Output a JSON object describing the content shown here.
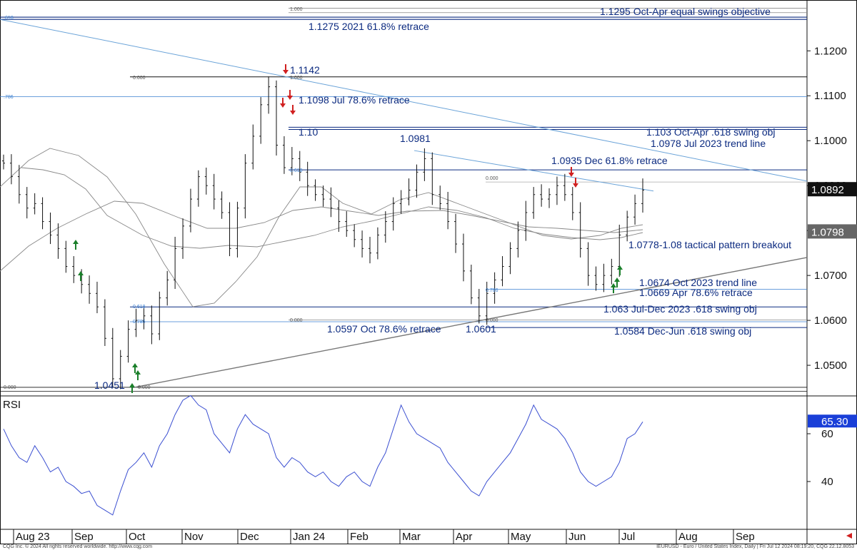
{
  "chart_data": {
    "type": "candlestick",
    "symbol_info": "IEURUSD - Euro / United States Index, Daily | Fri Jul 12 2024 08:19:20, CQG 22.12.8053",
    "copyright": "CQG Inc. © 2024 All rights reserved worldwide. http://www.cqg.com",
    "price_axis": {
      "ticks": [
        "1.0500",
        "1.0600",
        "1.0700",
        "1.0800",
        "1.0900",
        "1.1000",
        "1.1100",
        "1.1200"
      ],
      "range": [
        1.0435,
        1.131
      ]
    },
    "last_price": "1.0892",
    "secondary_price_label": "1.0798",
    "months": [
      "Aug 23",
      "Sep",
      "Oct",
      "Nov",
      "Dec",
      "Jan 24",
      "Feb",
      "Mar",
      "Apr",
      "May",
      "Jun",
      "Jul",
      "Aug",
      "Sep"
    ],
    "annotations": [
      "1.1295 Oct-Apr equal swings objective",
      "1.1275 2021 61.8% retrace",
      "1.1142",
      "1.1098 Jul 78.6% retrace",
      "1.10",
      "1.0981",
      "1.103 Oct-Apr .618 swing obj",
      "1.0978 Jul 2023 trend line",
      "1.0935 Dec 61.8% retrace",
      "1.0778-1.08 tactical pattern breakout",
      "1.0674 Oct 2023 trend line",
      "1.0669 Apr 78.6% retrace",
      "1.063 Jul-Dec 2023 .618 swing obj",
      "1.0597 Oct 78.6% retrace",
      "1.0601",
      "1.0584 Dec-Jun .618 swing obj",
      "1.0451"
    ],
    "fib_labels": [
      "0.000",
      ".618",
      ".786",
      "1.000",
      "0.618",
      "0.786"
    ],
    "closes": [
      1.095,
      1.092,
      1.088,
      1.085,
      1.086,
      1.082,
      1.079,
      1.076,
      1.072,
      1.07,
      1.068,
      1.066,
      1.063,
      1.056,
      1.047,
      1.052,
      1.058,
      1.06,
      1.061,
      1.057,
      1.065,
      1.069,
      1.076,
      1.081,
      1.087,
      1.092,
      1.09,
      1.087,
      1.084,
      1.076,
      1.085,
      1.095,
      1.101,
      1.108,
      1.112,
      1.099,
      1.094,
      1.096,
      1.093,
      1.09,
      1.088,
      1.087,
      1.085,
      1.082,
      1.08,
      1.078,
      1.076,
      1.075,
      1.079,
      1.082,
      1.086,
      1.087,
      1.089,
      1.093,
      1.096,
      1.088,
      1.086,
      1.082,
      1.077,
      1.071,
      1.065,
      1.061,
      1.066,
      1.069,
      1.072,
      1.076,
      1.08,
      1.084,
      1.088,
      1.087,
      1.088,
      1.09,
      1.088,
      1.084,
      1.076,
      1.07,
      1.068,
      1.07,
      1.072,
      1.079,
      1.083,
      1.086,
      1.089
    ],
    "rsi": {
      "label": "RSI",
      "value": "65.30",
      "ticks": [
        "40",
        "60"
      ],
      "values": [
        62,
        55,
        50,
        48,
        55,
        50,
        44,
        46,
        40,
        38,
        35,
        36,
        30,
        28,
        26,
        36,
        45,
        48,
        52,
        46,
        55,
        60,
        68,
        74,
        76,
        72,
        70,
        60,
        56,
        52,
        62,
        68,
        64,
        62,
        60,
        50,
        46,
        50,
        48,
        44,
        42,
        44,
        40,
        38,
        42,
        44,
        40,
        38,
        46,
        52,
        62,
        72,
        65,
        60,
        58,
        56,
        54,
        48,
        44,
        40,
        36,
        34,
        40,
        44,
        48,
        52,
        58,
        64,
        72,
        66,
        64,
        62,
        58,
        52,
        44,
        40,
        38,
        40,
        42,
        48,
        58,
        60,
        65
      ]
    },
    "series": [
      {
        "name": "MA fast"
      },
      {
        "name": "MA medium"
      },
      {
        "name": "MA slow"
      }
    ]
  },
  "colors": {
    "candle": "#111111",
    "annotation": "#0b2a80",
    "fib_line": "#3a7fd0",
    "trend_line": "#6aa3d8",
    "support_line": "#777777",
    "ma": "#888888",
    "rsi_line": "#3b4fd1",
    "price_box": "#111111",
    "price_box2": "#666666",
    "rsi_box": "#1a3fd8",
    "arrow_up": "#1a7f2a",
    "arrow_down": "#d02020"
  }
}
